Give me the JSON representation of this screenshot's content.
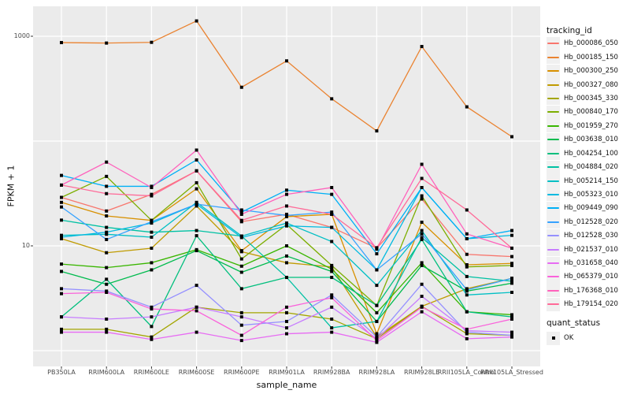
{
  "chart_data": {
    "type": "line",
    "title": "",
    "xlabel": "sample_name",
    "ylabel": "FPKM + 1",
    "y_scale": "log10",
    "y_axis_ticks": [
      {
        "label": "1000",
        "value": 1000
      },
      {
        "label": "10",
        "value": 10
      }
    ],
    "y_gridline_values": [
      1,
      10,
      100,
      1000
    ],
    "ylim": [
      1,
      1500
    ],
    "grid": "on",
    "legend_position": "right",
    "categories": [
      "PB350LA",
      "RRIM600LA",
      "RRIM600LE",
      "RRIM600SE",
      "RRIM600PE",
      "RRIM901LA",
      "RRIM928BA",
      "RRIM928LA",
      "RRIM928LE",
      "RRII105LA_Control",
      "RRII105LA_Stressed"
    ],
    "series": [
      {
        "name": "Hb_000086_050",
        "color": "#F8766D",
        "values": [
          29,
          21.5,
          31,
          52,
          17,
          20,
          15,
          9.5,
          28,
          8.3,
          7.9
        ]
      },
      {
        "name": "Hb_000185_150",
        "color": "#EA8331",
        "values": [
          870,
          861,
          875,
          1400,
          326,
          582,
          253,
          125,
          798,
          212,
          110
        ]
      },
      {
        "name": "Hb_000300_250",
        "color": "#D89000",
        "values": [
          26,
          19.3,
          17.5,
          35,
          9,
          19,
          20,
          1.45,
          16.8,
          6.6,
          6.8
        ]
      },
      {
        "name": "Hb_000327_080",
        "color": "#C09B00",
        "values": [
          11.7,
          8.6,
          9.5,
          24,
          8.8,
          6.9,
          6.3,
          1.35,
          2.65,
          3.9,
          4.9
        ]
      },
      {
        "name": "Hb_000345_330",
        "color": "#A3A500",
        "values": [
          1.6,
          1.6,
          1.35,
          2.6,
          2.3,
          2.3,
          2.0,
          1.3,
          2.65,
          1.45,
          1.4
        ]
      },
      {
        "name": "Hb_000840_170",
        "color": "#7CAE00",
        "values": [
          29,
          46,
          17.5,
          40,
          7.5,
          16,
          6.5,
          2.7,
          30,
          6.3,
          6.5
        ]
      },
      {
        "name": "Hb_001959_270",
        "color": "#39B600",
        "values": [
          6.7,
          6.2,
          6.9,
          9.2,
          6.4,
          10,
          6.0,
          2.3,
          6.9,
          2.35,
          2.2
        ]
      },
      {
        "name": "Hb_003638_010",
        "color": "#00BB4E",
        "values": [
          5.7,
          4.3,
          5.9,
          9.0,
          5.6,
          8.0,
          5.7,
          1.9,
          6.5,
          3.7,
          4.4
        ]
      },
      {
        "name": "Hb_004254_100",
        "color": "#00BF7D",
        "values": [
          2.1,
          4.8,
          1.7,
          12.5,
          3.9,
          5.0,
          5.0,
          2.7,
          11.5,
          2.35,
          2.1
        ]
      },
      {
        "name": "Hb_004884_020",
        "color": "#00C1A3",
        "values": [
          17.6,
          15,
          13.5,
          14,
          12.4,
          5.0,
          1.65,
          1.9,
          12,
          5.1,
          4.6
        ]
      },
      {
        "name": "Hb_005214_150",
        "color": "#00BFC4",
        "values": [
          12.6,
          12.9,
          12.1,
          26,
          12.4,
          16.5,
          11,
          4.2,
          14,
          3.4,
          3.6
        ]
      },
      {
        "name": "Hb_005323_010",
        "color": "#00BAE0",
        "values": [
          12.1,
          13.5,
          16.5,
          25,
          12,
          15.5,
          15,
          5.9,
          36,
          11.7,
          12.6
        ]
      },
      {
        "name": "Hb_009449_090",
        "color": "#00B0F6",
        "values": [
          47,
          37,
          37,
          66,
          21,
          34,
          31,
          8.4,
          36,
          11.7,
          14
        ]
      },
      {
        "name": "Hb_012528_020",
        "color": "#35A2FF",
        "values": [
          23.5,
          11.5,
          17,
          25,
          22,
          19.5,
          21,
          5.9,
          13,
          3.8,
          4.9
        ]
      },
      {
        "name": "Hb_012528_030",
        "color": "#9590FF",
        "values": [
          3.9,
          3.7,
          2.6,
          4.2,
          1.75,
          1.9,
          3.4,
          1.35,
          4.3,
          1.5,
          1.4
        ]
      },
      {
        "name": "Hb_021537_010",
        "color": "#C77CFF",
        "values": [
          2.1,
          2.0,
          2.1,
          2.6,
          2.1,
          1.65,
          2.6,
          1.3,
          3.3,
          1.55,
          1.5
        ]
      },
      {
        "name": "Hb_031658_040",
        "color": "#E76BF3",
        "values": [
          1.5,
          1.5,
          1.28,
          1.5,
          1.25,
          1.45,
          1.5,
          1.2,
          2.35,
          1.3,
          1.35
        ]
      },
      {
        "name": "Hb_065379_010",
        "color": "#FA62DB",
        "values": [
          3.5,
          3.6,
          2.5,
          2.4,
          1.4,
          2.6,
          3.2,
          1.25,
          2.6,
          1.6,
          2.0
        ]
      },
      {
        "name": "Hb_176368_010",
        "color": "#FF62BC",
        "values": [
          38,
          63,
          36,
          82,
          20,
          31,
          36,
          9.3,
          60,
          13,
          9.5
        ]
      },
      {
        "name": "Hb_179154_020",
        "color": "#FF6A98",
        "values": [
          38,
          31.5,
          30,
          52,
          17.5,
          24,
          20,
          9.6,
          44,
          22,
          9.5
        ]
      }
    ],
    "legend": {
      "title": "tracking_id"
    },
    "legend2": {
      "title": "quant_status",
      "items": [
        {
          "label": "OK"
        }
      ]
    },
    "colors": {
      "panel_background": "#EBEBEB",
      "gridline": "#FFFFFF",
      "point": "#000000",
      "tick_mark": "#333333",
      "tick_text": "#4a4a4a",
      "legend_key_background": "#F0F0F0"
    }
  }
}
